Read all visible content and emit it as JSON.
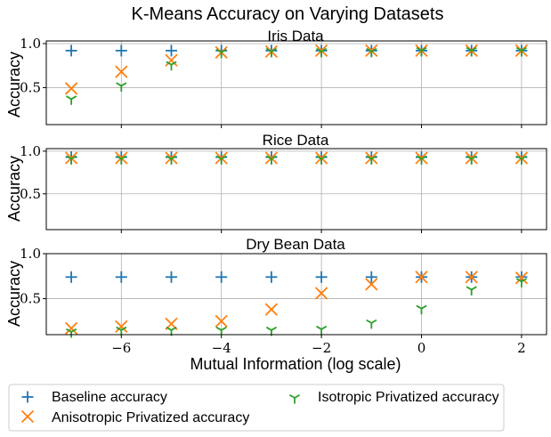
{
  "chart_data": {
    "type": "scatter",
    "title": "K-Means Accuracy on Varying Datasets",
    "xlabel": "Mutual Information (log scale)",
    "ylabel": "Accuracy",
    "x": [
      -7,
      -6,
      -5,
      -4,
      -3,
      -2,
      -1,
      0,
      1,
      2
    ],
    "xlim": [
      -7.5,
      2.5
    ],
    "xticks": [
      -6,
      -4,
      -2,
      0,
      2
    ],
    "xtick_labels": [
      "−6",
      "−4",
      "−2",
      "0",
      "2"
    ],
    "grid": true,
    "legend": {
      "placement": "bottom",
      "entries": [
        "Baseline accuracy",
        "Isotropic Privatized accuracy",
        "Anisotropic Privatized accuracy"
      ]
    },
    "colors": {
      "baseline": "#1f77b4",
      "anisotropic": "#ff7f0e",
      "isotropic": "#2ca02c"
    },
    "panels": [
      {
        "title": "Iris Data",
        "ylim": [
          0.08,
          1.03
        ],
        "yticks": [
          0.5,
          1.0
        ],
        "ytick_labels": [
          "0.5",
          "1.0"
        ],
        "series": [
          {
            "name": "Baseline accuracy",
            "marker": "plus",
            "values": [
              0.92,
              0.92,
              0.92,
              0.92,
              0.92,
              0.92,
              0.92,
              0.92,
              0.92,
              0.92
            ]
          },
          {
            "name": "Anisotropic Privatized accuracy",
            "marker": "x",
            "values": [
              0.49,
              0.68,
              0.81,
              0.9,
              0.91,
              0.92,
              0.92,
              0.92,
              0.92,
              0.92
            ]
          },
          {
            "name": "Isotropic Privatized accuracy",
            "marker": "tri_down",
            "values": [
              0.37,
              0.52,
              0.76,
              0.9,
              0.91,
              0.91,
              0.91,
              0.92,
              0.92,
              0.92
            ]
          }
        ]
      },
      {
        "title": "Rice Data",
        "ylim": [
          0.08,
          1.03
        ],
        "yticks": [
          0.5,
          1.0
        ],
        "ytick_labels": [
          "0.5",
          "1.0"
        ],
        "series": [
          {
            "name": "Baseline accuracy",
            "marker": "plus",
            "values": [
              0.93,
              0.93,
              0.93,
              0.93,
              0.93,
              0.93,
              0.93,
              0.93,
              0.93,
              0.93
            ]
          },
          {
            "name": "Anisotropic Privatized accuracy",
            "marker": "x",
            "values": [
              0.92,
              0.92,
              0.92,
              0.92,
              0.92,
              0.92,
              0.92,
              0.92,
              0.92,
              0.92
            ]
          },
          {
            "name": "Isotropic Privatized accuracy",
            "marker": "tri_down",
            "values": [
              0.91,
              0.91,
              0.91,
              0.91,
              0.91,
              0.91,
              0.91,
              0.91,
              0.91,
              0.91
            ]
          }
        ]
      },
      {
        "title": "Dry Bean Data",
        "ylim": [
          0.1,
          1.0
        ],
        "yticks": [
          0.5,
          1.0
        ],
        "ytick_labels": [
          "0.5",
          "1.0"
        ],
        "series": [
          {
            "name": "Baseline accuracy",
            "marker": "plus",
            "values": [
              0.74,
              0.74,
              0.74,
              0.74,
              0.74,
              0.74,
              0.74,
              0.74,
              0.74,
              0.74
            ]
          },
          {
            "name": "Anisotropic Privatized accuracy",
            "marker": "x",
            "values": [
              0.17,
              0.19,
              0.22,
              0.25,
              0.38,
              0.56,
              0.66,
              0.74,
              0.74,
              0.73
            ]
          },
          {
            "name": "Isotropic Privatized accuracy",
            "marker": "tri_down",
            "values": [
              0.13,
              0.15,
              0.15,
              0.15,
              0.15,
              0.16,
              0.23,
              0.39,
              0.6,
              0.69
            ]
          }
        ]
      }
    ]
  }
}
